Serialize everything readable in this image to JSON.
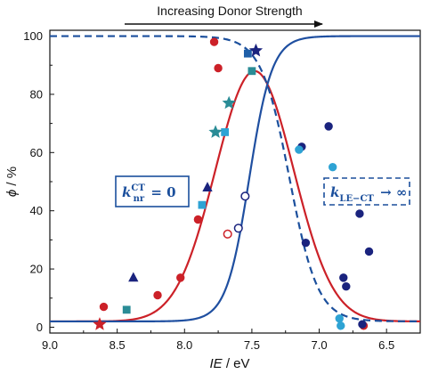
{
  "chart_data": {
    "type": "scatter",
    "title": "",
    "banner": "Increasing Donor Strength",
    "xlabel_var": "IE",
    "xlabel_unit": " / eV",
    "ylabel_var": "ϕ",
    "ylabel_unit": " / %",
    "xlim": [
      9.0,
      6.25
    ],
    "ylim": [
      -2,
      102
    ],
    "x_reversed": true,
    "grid": false,
    "xticks": [
      9.0,
      8.5,
      8.0,
      7.5,
      7.0,
      6.5
    ],
    "xtick_labels": [
      "9.0",
      "8.5",
      "8.0",
      "7.5",
      "7.0",
      "6.5"
    ],
    "yticks": [
      0,
      20,
      40,
      60,
      80,
      100
    ],
    "ytick_labels": [
      "0",
      "20",
      "40",
      "60",
      "80",
      "100"
    ],
    "annotations": [
      {
        "id": "knr",
        "base": "k",
        "sub": "nr",
        "sup": "CT",
        "rest": " = 0",
        "color": "#1b4f9c",
        "box": "solid"
      },
      {
        "id": "klect",
        "base": "k",
        "sub": "LE−CT",
        "rest": " → ∞",
        "color": "#1b4f9c",
        "box": "dashed"
      }
    ],
    "colors": {
      "red": "#cc2128",
      "navy": "#1a237e",
      "teal": "#2a8c96",
      "sky": "#2ea3d4",
      "midblue": "#1f5fa8",
      "blue_curve": "#1f4fa0",
      "red_curve": "#cc2128",
      "dashed_curve": "#1b4f9c"
    },
    "curves": [
      {
        "name": "",
        "kind": "gaussian",
        "center": 7.48,
        "sigma": 0.29,
        "base": 2,
        "peak": 88,
        "color": "#cc2128",
        "style": "solid"
      },
      {
        "name": "",
        "kind": "sigmoid-rise",
        "center": 7.52,
        "width": 0.085,
        "base": 2,
        "top": 100,
        "color": "#1f4fa0",
        "style": "solid"
      },
      {
        "name": "",
        "kind": "sigmoid-fall",
        "center": 7.22,
        "width": 0.105,
        "base": 2,
        "top": 100,
        "color": "#1b4f9c",
        "style": "dashed"
      }
    ],
    "series": [
      {
        "name": "",
        "marker": "circle",
        "color": "#cc2128",
        "filled": true,
        "points": [
          [
            8.6,
            7
          ],
          [
            8.2,
            11
          ],
          [
            8.03,
            17
          ],
          [
            7.9,
            37
          ],
          [
            7.78,
            98
          ],
          [
            7.75,
            89
          ],
          [
            6.67,
            0.5
          ]
        ]
      },
      {
        "name": "",
        "marker": "circle",
        "color": "#cc2128",
        "filled": false,
        "points": [
          [
            7.68,
            32
          ]
        ]
      },
      {
        "name": "",
        "marker": "star",
        "color": "#cc2128",
        "filled": true,
        "points": [
          [
            8.63,
            1
          ]
        ]
      },
      {
        "name": "",
        "marker": "circle",
        "color": "#1a237e",
        "filled": true,
        "points": [
          [
            7.13,
            62
          ],
          [
            7.1,
            29
          ],
          [
            6.93,
            69
          ],
          [
            6.7,
            39
          ],
          [
            6.82,
            17
          ],
          [
            6.8,
            14
          ],
          [
            6.63,
            26
          ],
          [
            6.68,
            1
          ]
        ]
      },
      {
        "name": "",
        "marker": "circle",
        "color": "#1a237e",
        "filled": false,
        "points": [
          [
            7.6,
            34
          ],
          [
            7.55,
            45
          ]
        ]
      },
      {
        "name": "",
        "marker": "circle",
        "color": "#2ea3d4",
        "filled": true,
        "points": [
          [
            7.15,
            61
          ],
          [
            6.9,
            55
          ],
          [
            6.85,
            3
          ],
          [
            6.84,
            0.5
          ]
        ]
      },
      {
        "name": "",
        "marker": "square",
        "color": "#2a8c96",
        "filled": true,
        "points": [
          [
            8.43,
            6
          ],
          [
            7.5,
            88
          ]
        ]
      },
      {
        "name": "",
        "marker": "square",
        "color": "#2ea3d4",
        "filled": true,
        "points": [
          [
            7.87,
            42
          ],
          [
            7.7,
            67
          ]
        ]
      },
      {
        "name": "",
        "marker": "square",
        "color": "#1f5fa8",
        "filled": true,
        "points": [
          [
            7.53,
            94
          ]
        ]
      },
      {
        "name": "",
        "marker": "triangle",
        "color": "#1a237e",
        "filled": true,
        "points": [
          [
            8.38,
            17
          ],
          [
            7.83,
            48
          ]
        ]
      },
      {
        "name": "",
        "marker": "star",
        "color": "#2a8c96",
        "filled": true,
        "points": [
          [
            7.67,
            77
          ],
          [
            7.77,
            67
          ]
        ]
      },
      {
        "name": "",
        "marker": "star",
        "color": "#1a237e",
        "filled": true,
        "points": [
          [
            7.47,
            95
          ]
        ]
      }
    ]
  }
}
